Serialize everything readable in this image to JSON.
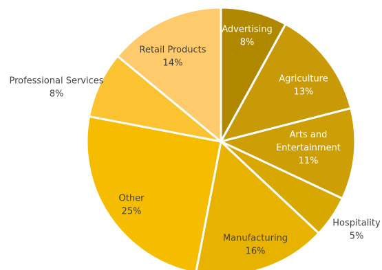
{
  "chart_data": {
    "type": "pie",
    "title": "",
    "categories": [
      "Advertising",
      "Agriculture",
      "Arts and Entertainment",
      "Hospitality",
      "Manufacturing",
      "Other",
      "Professional Services",
      "Retail Products"
    ],
    "values": [
      8,
      13,
      11,
      5,
      16,
      25,
      8,
      14
    ],
    "value_labels": [
      "8%",
      "13%",
      "11%",
      "5%",
      "16%",
      "25%",
      "8%",
      "14%"
    ],
    "colors": [
      "#B08800",
      "#C89A08",
      "#CE9E07",
      "#D8A800",
      "#E8B300",
      "#F6BC00",
      "#FBC331",
      "#FECA6B"
    ],
    "legend": "none"
  }
}
